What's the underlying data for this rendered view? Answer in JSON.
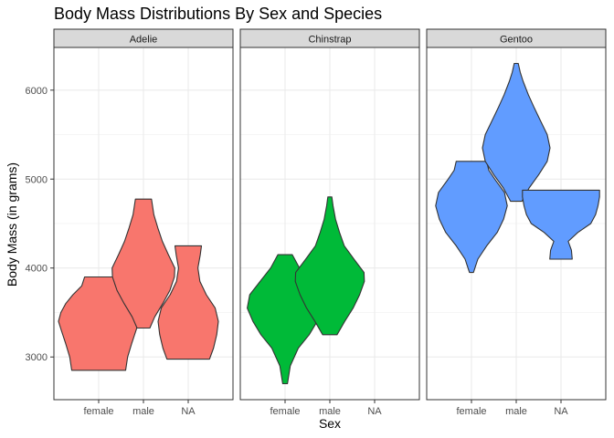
{
  "chart_data": {
    "type": "violin",
    "title": "Body Mass Distributions By Sex and Species",
    "xlabel": "Sex",
    "ylabel": "Body Mass (in grams)",
    "ylim": [
      2520,
      6480
    ],
    "yticks": [
      3000,
      4000,
      5000,
      6000
    ],
    "categories": [
      "female",
      "male",
      "NA"
    ],
    "grid": true,
    "legend": "none",
    "panels": [
      {
        "name": "Adelie",
        "color": "#F8766D",
        "violins": [
          {
            "category": "female",
            "min": 2850,
            "max": 3900,
            "profile": [
              [
                2850,
                0.67
              ],
              [
                3000,
                0.72
              ],
              [
                3150,
                0.82
              ],
              [
                3300,
                0.93
              ],
              [
                3400,
                1.0
              ],
              [
                3500,
                0.94
              ],
              [
                3600,
                0.82
              ],
              [
                3700,
                0.64
              ],
              [
                3800,
                0.42
              ],
              [
                3900,
                0.35
              ]
            ]
          },
          {
            "category": "male",
            "min": 3325,
            "max": 4775,
            "profile": [
              [
                3325,
                0.16
              ],
              [
                3450,
                0.28
              ],
              [
                3600,
                0.48
              ],
              [
                3750,
                0.66
              ],
              [
                3900,
                0.77
              ],
              [
                4000,
                0.78
              ],
              [
                4150,
                0.62
              ],
              [
                4300,
                0.47
              ],
              [
                4450,
                0.36
              ],
              [
                4600,
                0.26
              ],
              [
                4775,
                0.2
              ]
            ]
          },
          {
            "category": "NA",
            "min": 2975,
            "max": 4250,
            "profile": [
              [
                2975,
                0.53
              ],
              [
                3100,
                0.63
              ],
              [
                3250,
                0.71
              ],
              [
                3400,
                0.75
              ],
              [
                3550,
                0.67
              ],
              [
                3700,
                0.45
              ],
              [
                3850,
                0.29
              ],
              [
                4000,
                0.24
              ],
              [
                4150,
                0.3
              ],
              [
                4250,
                0.33
              ]
            ]
          }
        ]
      },
      {
        "name": "Chinstrap",
        "color": "#00BA38",
        "violins": [
          {
            "category": "female",
            "min": 2700,
            "max": 4150,
            "profile": [
              [
                2700,
                0.06
              ],
              [
                2900,
                0.13
              ],
              [
                3100,
                0.33
              ],
              [
                3250,
                0.6
              ],
              [
                3400,
                0.8
              ],
              [
                3550,
                0.94
              ],
              [
                3700,
                0.88
              ],
              [
                3850,
                0.62
              ],
              [
                4000,
                0.36
              ],
              [
                4150,
                0.18
              ]
            ]
          },
          {
            "category": "male",
            "min": 3250,
            "max": 4800,
            "profile": [
              [
                3250,
                0.18
              ],
              [
                3400,
                0.37
              ],
              [
                3550,
                0.58
              ],
              [
                3700,
                0.74
              ],
              [
                3850,
                0.86
              ],
              [
                3950,
                0.85
              ],
              [
                4100,
                0.6
              ],
              [
                4250,
                0.36
              ],
              [
                4400,
                0.24
              ],
              [
                4550,
                0.14
              ],
              [
                4700,
                0.08
              ],
              [
                4800,
                0.05
              ]
            ]
          }
        ]
      },
      {
        "name": "Gentoo",
        "color": "#619CFF",
        "violins": [
          {
            "category": "female",
            "min": 3950,
            "max": 5200,
            "profile": [
              [
                3950,
                0.05
              ],
              [
                4100,
                0.16
              ],
              [
                4250,
                0.38
              ],
              [
                4400,
                0.64
              ],
              [
                4550,
                0.8
              ],
              [
                4700,
                0.89
              ],
              [
                4850,
                0.82
              ],
              [
                5000,
                0.58
              ],
              [
                5100,
                0.43
              ],
              [
                5200,
                0.38
              ]
            ]
          },
          {
            "category": "male",
            "min": 4750,
            "max": 6300,
            "profile": [
              [
                4750,
                0.14
              ],
              [
                4900,
                0.32
              ],
              [
                5050,
                0.56
              ],
              [
                5200,
                0.77
              ],
              [
                5350,
                0.84
              ],
              [
                5500,
                0.77
              ],
              [
                5650,
                0.61
              ],
              [
                5800,
                0.45
              ],
              [
                5950,
                0.3
              ],
              [
                6100,
                0.17
              ],
              [
                6200,
                0.1
              ],
              [
                6300,
                0.05
              ]
            ]
          },
          {
            "category": "NA",
            "min": 4100,
            "max": 4875,
            "profile": [
              [
                4100,
                0.28
              ],
              [
                4200,
                0.26
              ],
              [
                4300,
                0.18
              ],
              [
                4400,
                0.42
              ],
              [
                4500,
                0.74
              ],
              [
                4600,
                0.86
              ],
              [
                4700,
                0.92
              ],
              [
                4800,
                0.96
              ],
              [
                4875,
                0.96
              ]
            ]
          }
        ]
      }
    ]
  }
}
